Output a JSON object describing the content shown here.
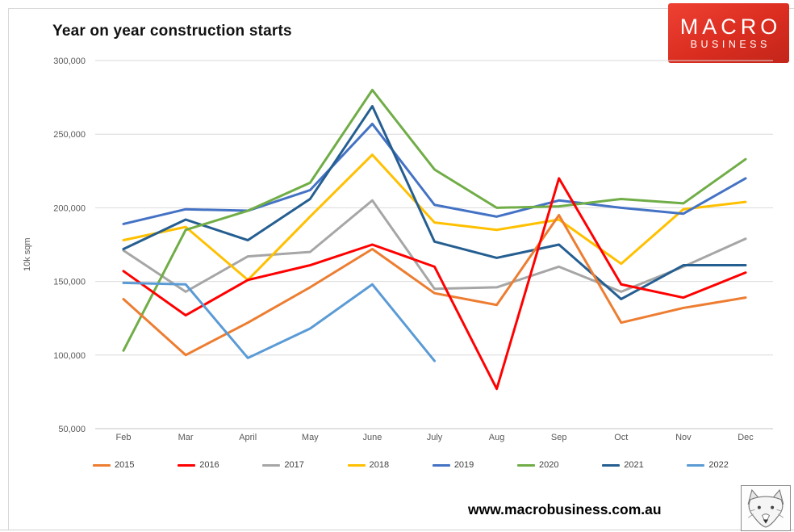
{
  "title": "Year on year construction starts",
  "logo": {
    "line1": "MACRO",
    "line2": "BUSINESS"
  },
  "footer": {
    "url": "www.macrobusiness.com.au"
  },
  "chart_data": {
    "type": "line",
    "x": [
      "Feb",
      "Mar",
      "April",
      "May",
      "June",
      "July",
      "Aug",
      "Sep",
      "Oct",
      "Nov",
      "Dec"
    ],
    "ylabel": "10k sqm",
    "ylim": [
      50000,
      300000
    ],
    "ytick_interval": 50000,
    "ytick_labels_top_to_bottom": [
      "300,000",
      "250,000",
      "200,000",
      "150,000",
      "100,000",
      "50,000"
    ],
    "grid": true,
    "legend_position": "bottom",
    "series": [
      {
        "name": "2015",
        "color": "#ED7D31",
        "values": [
          138000,
          100000,
          122000,
          146000,
          172000,
          142000,
          134000,
          195000,
          122000,
          132000,
          139000
        ]
      },
      {
        "name": "2016",
        "color": "#FF0000",
        "values": [
          157000,
          127000,
          151000,
          161000,
          175000,
          160000,
          77000,
          220000,
          148000,
          139000,
          156000
        ]
      },
      {
        "name": "2017",
        "color": "#A6A6A6",
        "values": [
          171000,
          143000,
          167000,
          170000,
          205000,
          145000,
          146000,
          160000,
          143000,
          160000,
          179000
        ]
      },
      {
        "name": "2018",
        "color": "#FFC000",
        "values": [
          178000,
          187000,
          151000,
          194000,
          236000,
          190000,
          185000,
          192000,
          162000,
          199000,
          204000
        ]
      },
      {
        "name": "2019",
        "color": "#4472C4",
        "values": [
          189000,
          199000,
          198000,
          212000,
          257000,
          202000,
          194000,
          205000,
          200000,
          196000,
          220000
        ]
      },
      {
        "name": "2020",
        "color": "#70AD47",
        "values": [
          103000,
          185000,
          198000,
          217000,
          280000,
          226000,
          200000,
          201000,
          206000,
          203000,
          233000
        ]
      },
      {
        "name": "2021",
        "color": "#255E91",
        "values": [
          172000,
          192000,
          178000,
          206000,
          269000,
          177000,
          166000,
          175000,
          138000,
          161000,
          161000
        ]
      },
      {
        "name": "2022",
        "color": "#5B9BD5",
        "values": [
          149000,
          148000,
          98000,
          118000,
          148000,
          96000,
          null,
          null,
          null,
          null,
          null
        ]
      }
    ]
  }
}
